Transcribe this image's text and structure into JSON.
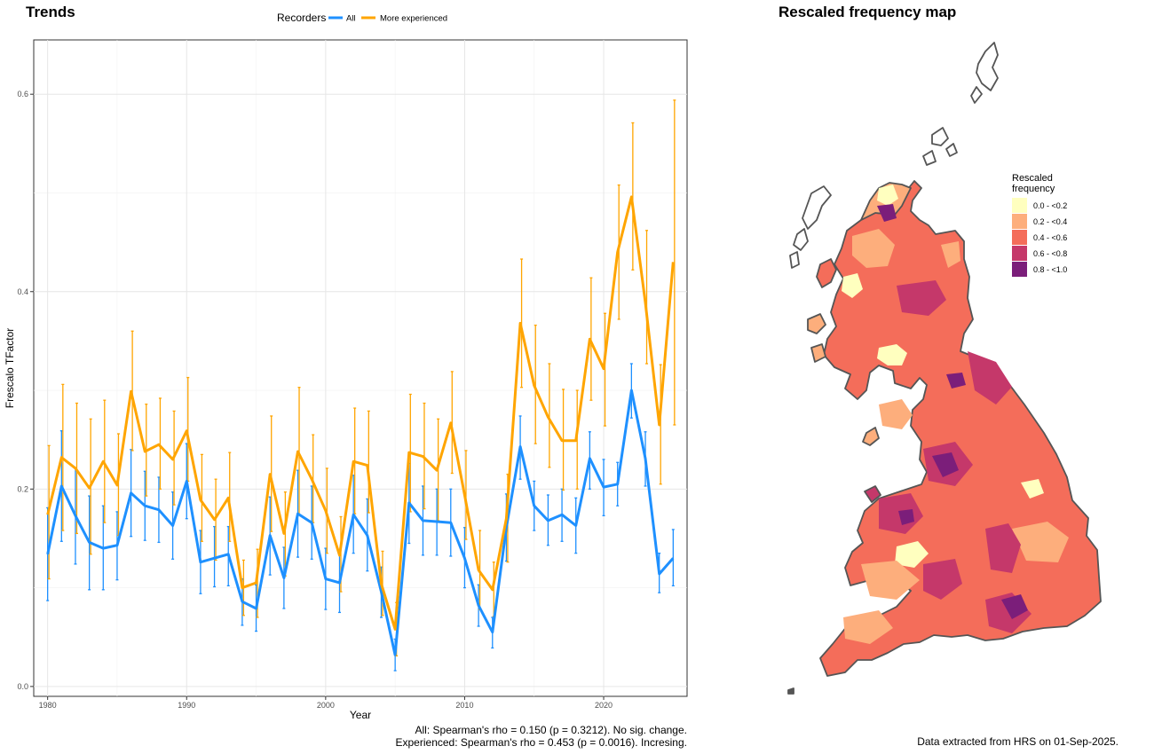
{
  "trends_title": "Trends",
  "map_title": "Rescaled frequency map",
  "stats": {
    "all": "All: Spearman's rho = 0.150 (p = 0.3212). No sig. change.",
    "experienced": "Experienced: Spearman's rho = 0.453 (p = 0.0016). Incresing."
  },
  "extract_note": "Data extracted from HRS on 01-Sep-2025.",
  "colors": {
    "all": "#1e90ff",
    "experienced": "#ffa500",
    "map_bins": [
      "#ffffbf",
      "#fdae7c",
      "#f46d5a",
      "#c5386a",
      "#7b1e7a"
    ]
  },
  "chart_data": {
    "type": "line",
    "title": "Trends",
    "xlabel": "Year",
    "ylabel": "Frescalo TFactor",
    "xlim": [
      1979,
      2026
    ],
    "ylim": [
      -0.01,
      0.655
    ],
    "x_ticks": [
      1980,
      1990,
      2000,
      2010,
      2020
    ],
    "y_ticks": [
      0.0,
      0.2,
      0.4,
      0.6
    ],
    "y_tick_labels": [
      "0.0",
      "0.2",
      "0.4",
      "0.6"
    ],
    "grid": true,
    "legend": {
      "title": "Recorders",
      "position": "top"
    },
    "x": [
      1980,
      1981,
      1982,
      1983,
      1984,
      1985,
      1986,
      1987,
      1988,
      1989,
      1990,
      1991,
      1992,
      1993,
      1994,
      1995,
      1996,
      1997,
      1998,
      1999,
      2000,
      2001,
      2002,
      2003,
      2004,
      2005,
      2006,
      2007,
      2008,
      2009,
      2010,
      2011,
      2012,
      2013,
      2014,
      2015,
      2016,
      2017,
      2018,
      2019,
      2020,
      2021,
      2022,
      2023,
      2024,
      2025
    ],
    "series": [
      {
        "name": "All",
        "color": "#1e90ff",
        "values": [
          0.134,
          0.203,
          0.173,
          0.146,
          0.14,
          0.143,
          0.196,
          0.183,
          0.179,
          0.163,
          0.208,
          0.126,
          0.13,
          0.134,
          0.086,
          0.079,
          0.153,
          0.11,
          0.175,
          0.166,
          0.109,
          0.105,
          0.174,
          0.153,
          0.096,
          0.032,
          0.186,
          0.168,
          0.167,
          0.166,
          0.13,
          0.082,
          0.055,
          0.161,
          0.243,
          0.183,
          0.168,
          0.174,
          0.163,
          0.231,
          0.202,
          0.205,
          0.3,
          0.231,
          0.114,
          0.13
        ],
        "lower": [
          0.087,
          0.147,
          0.124,
          0.098,
          0.098,
          0.108,
          0.152,
          0.148,
          0.146,
          0.129,
          0.17,
          0.094,
          0.101,
          0.102,
          0.062,
          0.056,
          0.113,
          0.079,
          0.131,
          0.129,
          0.078,
          0.075,
          0.135,
          0.117,
          0.07,
          0.016,
          0.145,
          0.133,
          0.133,
          0.132,
          0.1,
          0.061,
          0.039,
          0.127,
          0.21,
          0.158,
          0.143,
          0.147,
          0.135,
          0.2,
          0.173,
          0.183,
          0.272,
          0.203,
          0.095,
          0.102
        ],
        "upper": [
          0.181,
          0.259,
          0.221,
          0.193,
          0.183,
          0.177,
          0.24,
          0.218,
          0.212,
          0.197,
          0.246,
          0.158,
          0.162,
          0.162,
          0.109,
          0.103,
          0.192,
          0.141,
          0.219,
          0.203,
          0.14,
          0.135,
          0.214,
          0.19,
          0.121,
          0.048,
          0.226,
          0.203,
          0.2,
          0.2,
          0.161,
          0.103,
          0.07,
          0.195,
          0.274,
          0.208,
          0.194,
          0.2,
          0.191,
          0.258,
          0.23,
          0.227,
          0.327,
          0.258,
          0.135,
          0.159
        ]
      },
      {
        "name": "More experienced",
        "color": "#ffa500",
        "values": [
          0.174,
          0.232,
          0.221,
          0.201,
          0.228,
          0.204,
          0.299,
          0.238,
          0.245,
          0.23,
          0.259,
          0.189,
          0.169,
          0.191,
          0.1,
          0.105,
          0.215,
          0.155,
          0.238,
          0.21,
          0.178,
          0.133,
          0.228,
          0.224,
          0.104,
          0.058,
          0.237,
          0.233,
          0.219,
          0.267,
          0.194,
          0.118,
          0.098,
          0.17,
          0.368,
          0.305,
          0.273,
          0.249,
          0.249,
          0.352,
          0.322,
          0.44,
          0.496,
          0.389,
          0.265,
          0.43
        ],
        "lower": [
          0.109,
          0.158,
          0.155,
          0.134,
          0.166,
          0.153,
          0.239,
          0.193,
          0.2,
          0.184,
          0.208,
          0.147,
          0.128,
          0.147,
          0.072,
          0.07,
          0.157,
          0.112,
          0.174,
          0.166,
          0.135,
          0.096,
          0.175,
          0.176,
          0.072,
          0.031,
          0.177,
          0.18,
          0.168,
          0.216,
          0.149,
          0.078,
          0.071,
          0.126,
          0.303,
          0.246,
          0.222,
          0.199,
          0.2,
          0.29,
          0.264,
          0.372,
          0.422,
          0.327,
          0.205,
          0.265
        ],
        "upper": [
          0.244,
          0.306,
          0.287,
          0.271,
          0.29,
          0.256,
          0.36,
          0.286,
          0.292,
          0.279,
          0.313,
          0.235,
          0.21,
          0.237,
          0.128,
          0.139,
          0.274,
          0.197,
          0.303,
          0.255,
          0.221,
          0.172,
          0.282,
          0.279,
          0.137,
          0.085,
          0.296,
          0.287,
          0.271,
          0.319,
          0.239,
          0.158,
          0.126,
          0.215,
          0.433,
          0.366,
          0.327,
          0.301,
          0.3,
          0.414,
          0.378,
          0.508,
          0.571,
          0.462,
          0.326,
          0.594
        ]
      }
    ]
  },
  "map_legend": {
    "title_lines": [
      "Rescaled",
      "frequency"
    ],
    "entries": [
      "0.0 - <0.2",
      "0.2 - <0.4",
      "0.4 - <0.6",
      "0.6 - <0.8",
      "0.8 - <1.0"
    ]
  }
}
